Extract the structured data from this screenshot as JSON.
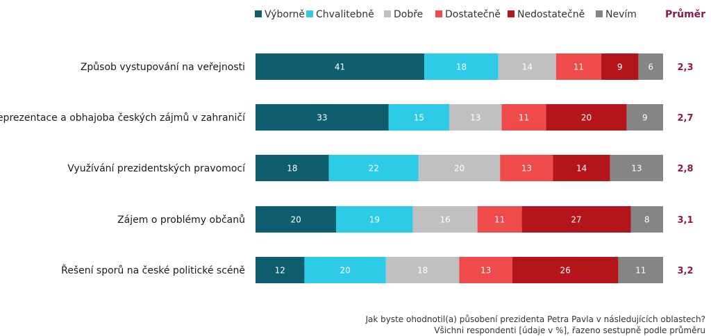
{
  "chart_data": {
    "type": "bar",
    "orientation": "horizontal",
    "stacked": true,
    "categories": [
      "Způsob vystupování na veřejnosti",
      "Reprezentace a obhajoba českých zájmů v zahraničí",
      "Využívání prezidentských pravomocí",
      "Zájem o problémy občanů",
      "Řešení sporů na české politické scéně"
    ],
    "series": [
      {
        "name": "Výborně",
        "color": "#0e5e6f",
        "values": [
          41,
          33,
          18,
          20,
          12
        ]
      },
      {
        "name": "Chvalitebně",
        "color": "#2ecbe8",
        "values": [
          18,
          15,
          22,
          19,
          20
        ]
      },
      {
        "name": "Dobře",
        "color": "#c0c0c0",
        "values": [
          14,
          13,
          20,
          16,
          18
        ]
      },
      {
        "name": "Dostatečně",
        "color": "#f04b4b",
        "values": [
          11,
          11,
          13,
          11,
          13
        ]
      },
      {
        "name": "Nedostatečně",
        "color": "#b3151b",
        "values": [
          9,
          20,
          14,
          27,
          26
        ]
      },
      {
        "name": "Nevím",
        "color": "#858585",
        "values": [
          6,
          9,
          13,
          8,
          11
        ]
      }
    ],
    "average_header": "Průměr",
    "averages": [
      "2,3",
      "2,7",
      "2,8",
      "3,1",
      "3,2"
    ],
    "legend_position": "top",
    "grid": false
  },
  "footnote": {
    "line1": "Jak byste ohodnotil(a) působení prezidenta Petra Pavla v následujících oblastech?",
    "line2": "Všichni respondenti [údaje v %], řazeno sestupně podle průměru"
  }
}
